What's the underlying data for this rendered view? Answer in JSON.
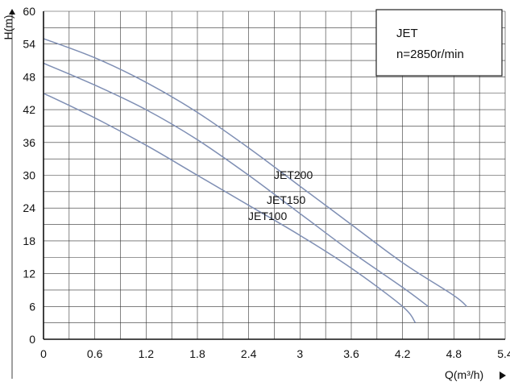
{
  "chart_data": {
    "type": "line",
    "xlabel": "Q(m³/h)",
    "ylabel": "H(m)",
    "xlim": [
      0,
      5.4
    ],
    "ylim": [
      0,
      60
    ],
    "xticks": [
      "0",
      "0.6",
      "1.2",
      "1.8",
      "2.4",
      "3",
      "3.6",
      "4.2",
      "4.8",
      "5.4"
    ],
    "yticks": [
      "0",
      "6",
      "12",
      "18",
      "24",
      "30",
      "36",
      "42",
      "48",
      "54",
      "60"
    ],
    "grid": true,
    "legend_box": {
      "title": "JET",
      "subtitle": "n=2850r/min",
      "position": "top-right"
    },
    "series": [
      {
        "name": "JET200",
        "color": "#7f8fb4",
        "x": [
          0,
          0.6,
          1.2,
          1.8,
          2.4,
          3.0,
          3.6,
          4.2,
          4.8,
          4.95
        ],
        "y": [
          55.0,
          51.5,
          47.0,
          41.5,
          35.0,
          28.0,
          21.0,
          14.0,
          8.0,
          6.0
        ]
      },
      {
        "name": "JET150",
        "color": "#7f8fb4",
        "x": [
          0,
          0.6,
          1.2,
          1.8,
          2.4,
          3.0,
          3.6,
          4.2,
          4.5
        ],
        "y": [
          50.5,
          46.5,
          42.0,
          36.5,
          30.0,
          23.0,
          16.0,
          9.5,
          6.0
        ]
      },
      {
        "name": "JET100",
        "color": "#7f8fb4",
        "x": [
          0,
          0.6,
          1.2,
          1.8,
          2.4,
          3.0,
          3.6,
          4.2,
          4.35
        ],
        "y": [
          45.0,
          40.5,
          35.5,
          30.0,
          24.5,
          19.0,
          13.0,
          6.0,
          3.0
        ]
      }
    ]
  }
}
